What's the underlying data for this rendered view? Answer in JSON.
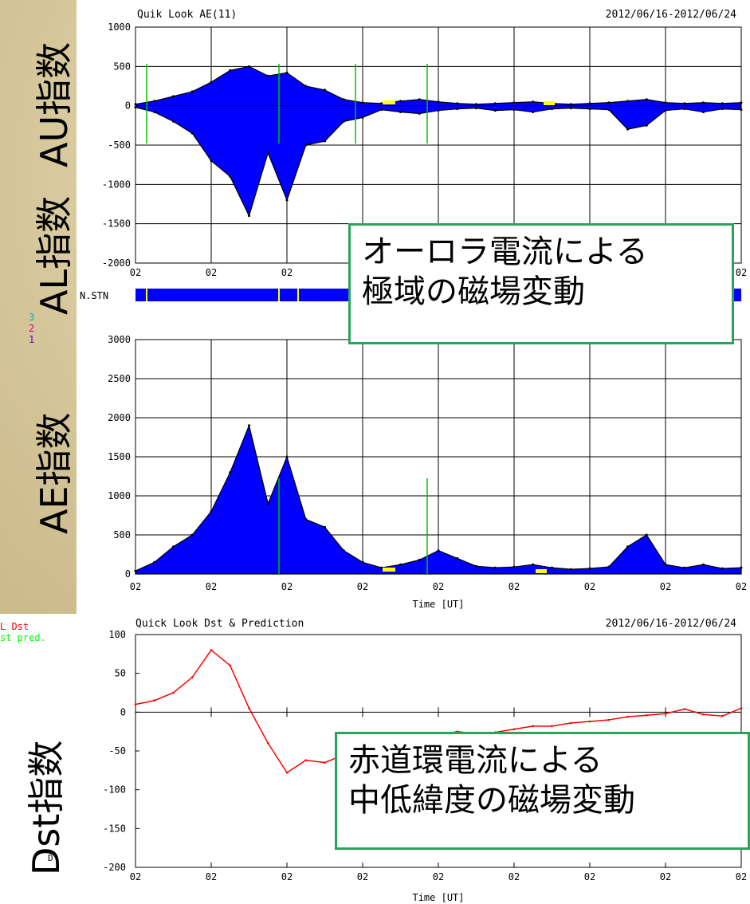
{
  "colors": {
    "fill": "#0000ff",
    "outline": "#000000",
    "green_line": "#00c000",
    "yellow": "#ffff00",
    "dst_line": "#ff0000",
    "pred": "#00ff00",
    "callout_border": "#2ca35a"
  },
  "side_labels": {
    "au": "AU指数",
    "al": "AL指数",
    "ae": "AE指数",
    "dst": "Dst指数"
  },
  "callouts": {
    "auroral": [
      "オーロラ電流による",
      "極域の磁場変動"
    ],
    "ring": [
      "赤道環電流による",
      "中低緯度の磁場変動"
    ]
  },
  "stn_label": "N.STN",
  "stn_digits": [
    "3",
    "2",
    "1"
  ],
  "chart_data": [
    {
      "type": "area",
      "title": "Quik Look AE(11)",
      "date_range": "2012/06/16-2012/06/24",
      "ylim": [
        -2000,
        1000
      ],
      "yticks": [
        "1000",
        "500",
        "0",
        "-500",
        "-1000",
        "-1500",
        "-2000"
      ],
      "xticks": [
        "02",
        "02",
        "02",
        "02",
        "02",
        "02",
        "02",
        "02",
        "02"
      ],
      "grid": true,
      "x": [
        0,
        0.25,
        0.5,
        0.75,
        1,
        1.25,
        1.5,
        1.75,
        2,
        2.25,
        2.5,
        2.75,
        3,
        3.25,
        3.5,
        3.75,
        4,
        4.25,
        4.5,
        4.75,
        5,
        5.25,
        5.5,
        5.75,
        6,
        6.25,
        6.5,
        6.75,
        7,
        7.25,
        7.5,
        7.75,
        8
      ],
      "series": [
        {
          "values": [
            20,
            60,
            120,
            180,
            300,
            450,
            500,
            380,
            420,
            250,
            200,
            80,
            40,
            30,
            60,
            80,
            50,
            30,
            20,
            30,
            40,
            50,
            30,
            20,
            30,
            40,
            60,
            80,
            40,
            30,
            40,
            30,
            40
          ]
        },
        {
          "values": [
            -20,
            -80,
            -200,
            -350,
            -700,
            -900,
            -1400,
            -600,
            -1200,
            -500,
            -450,
            -200,
            -150,
            -50,
            -80,
            -100,
            -60,
            -40,
            -30,
            -60,
            -50,
            -80,
            -40,
            -30,
            -40,
            -50,
            -300,
            -250,
            -60,
            -40,
            -80,
            -40,
            -50
          ]
        }
      ]
    },
    {
      "type": "area",
      "ylim": [
        0,
        3000
      ],
      "yticks": [
        "3000",
        "2500",
        "2000",
        "1500",
        "1000",
        "500",
        "0"
      ],
      "xticks": [
        "02",
        "02",
        "02",
        "02",
        "02",
        "02",
        "02",
        "02",
        "02"
      ],
      "xlabel": "Time [UT]",
      "grid": true,
      "x": [
        0,
        0.25,
        0.5,
        0.75,
        1,
        1.25,
        1.5,
        1.75,
        2,
        2.25,
        2.5,
        2.75,
        3,
        3.25,
        3.5,
        3.75,
        4,
        4.25,
        4.5,
        4.75,
        5,
        5.25,
        5.5,
        5.75,
        6,
        6.25,
        6.5,
        6.75,
        7,
        7.25,
        7.5,
        7.75,
        8
      ],
      "values": [
        40,
        150,
        350,
        500,
        800,
        1300,
        1900,
        900,
        1500,
        700,
        600,
        300,
        150,
        80,
        120,
        180,
        300,
        200,
        100,
        80,
        90,
        120,
        80,
        60,
        70,
        90,
        350,
        500,
        120,
        80,
        120,
        70,
        80
      ]
    },
    {
      "type": "line",
      "title": "Quick Look Dst & Prediction",
      "date_range": "2012/06/16-2012/06/24",
      "ylim": [
        -200,
        100
      ],
      "yticks": [
        "100",
        "50",
        "0",
        "-50",
        "-100",
        "-150",
        "-200"
      ],
      "xticks": [
        "02",
        "02",
        "02",
        "02",
        "02",
        "02",
        "02",
        "02",
        "02"
      ],
      "xlabel": "Time [UT]",
      "legend": [
        "L Dst",
        "st pred."
      ],
      "axis_side_label": "D",
      "x": [
        0,
        0.25,
        0.5,
        0.75,
        1,
        1.25,
        1.5,
        1.75,
        2,
        2.25,
        2.5,
        2.75,
        3,
        3.25,
        3.5,
        3.75,
        4,
        4.25,
        4.5,
        4.75,
        5,
        5.25,
        5.5,
        5.75,
        6,
        6.25,
        6.5,
        6.75,
        7,
        7.25,
        7.5,
        7.75,
        8
      ],
      "values": [
        10,
        15,
        25,
        45,
        80,
        60,
        5,
        -40,
        -78,
        -62,
        -65,
        -55,
        -45,
        -38,
        -38,
        -40,
        -30,
        -25,
        -28,
        -26,
        -22,
        -18,
        -18,
        -14,
        -12,
        -10,
        -6,
        -4,
        -2,
        4,
        -3,
        -5,
        5
      ]
    }
  ]
}
